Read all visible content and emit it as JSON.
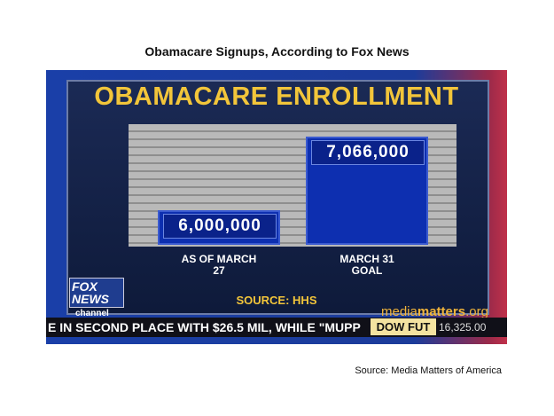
{
  "page_title": "Obamacare Signups, According to Fox News",
  "chart_data": {
    "type": "bar",
    "title": "OBAMACARE ENROLLMENT",
    "categories": [
      "AS OF MARCH 27",
      "MARCH 31 GOAL"
    ],
    "values": [
      6000000,
      7066000
    ],
    "value_labels": [
      "6,000,000",
      "7,066,000"
    ],
    "color": "#0d2fb0",
    "ylim": [
      5500000,
      7250000
    ],
    "source": "SOURCE: HHS"
  },
  "broadcast": {
    "logo": "FOX NEWS",
    "logo_sub": "channel",
    "watermark_a": "media",
    "watermark_b": "matters",
    "watermark_c": ".org",
    "ticker": "E IN SECOND PLACE WITH $26.5 MIL, WHILE \"MUPP",
    "ticker_label": "DOW FUT",
    "ticker_value": "16,325.00"
  },
  "footer": "Source: Media Matters of America"
}
